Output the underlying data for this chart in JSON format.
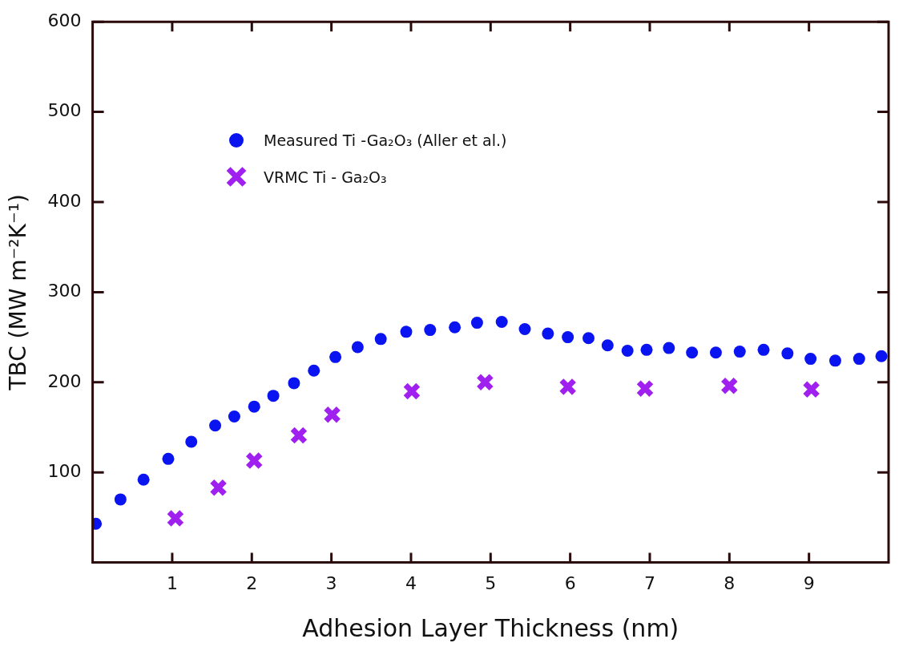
{
  "chart_data": {
    "type": "scatter",
    "xlabel": "Adhesion Layer Thickness (nm)",
    "ylabel": "TBC (MW m⁻²K⁻¹)",
    "xlim": [
      0,
      10
    ],
    "xticks": [
      1,
      2,
      3,
      4,
      5,
      6,
      7,
      8,
      9
    ],
    "ylim": [
      0,
      600
    ],
    "yticks": [
      100,
      200,
      300,
      400,
      500,
      600
    ],
    "grid": false,
    "legend": "top left",
    "series": [
      {
        "name": "Measured Ti -Ga₂O₃ (Aller et al.)",
        "color": "#0a14f0",
        "marker": "circle",
        "x": [
          0.04,
          0.35,
          0.64,
          0.95,
          1.24,
          1.54,
          1.78,
          2.03,
          2.27,
          2.53,
          2.78,
          3.05,
          3.33,
          3.62,
          3.94,
          4.24,
          4.55,
          4.83,
          5.14,
          5.43,
          5.72,
          5.97,
          6.23,
          6.47,
          6.72,
          6.96,
          7.24,
          7.53,
          7.83,
          8.13,
          8.43,
          8.73,
          9.02,
          9.33,
          9.63,
          9.91
        ],
        "values": [
          43,
          70,
          92,
          115,
          134,
          152,
          162,
          173,
          185,
          199,
          213,
          228,
          239,
          248,
          256,
          258,
          261,
          266,
          267,
          259,
          254,
          250,
          249,
          241,
          235,
          236,
          238,
          233,
          233,
          234,
          236,
          232,
          226,
          224,
          226,
          229
        ]
      },
      {
        "name": "VRMC Ti -  Ga₂O₃",
        "color": "#a020f0",
        "marker": "cross",
        "x": [
          1.04,
          1.58,
          2.03,
          2.59,
          3.01,
          4.01,
          4.93,
          5.97,
          6.94,
          8.0,
          9.03
        ],
        "values": [
          49,
          83,
          113,
          141,
          164,
          190,
          200,
          195,
          193,
          196,
          192
        ]
      }
    ]
  }
}
